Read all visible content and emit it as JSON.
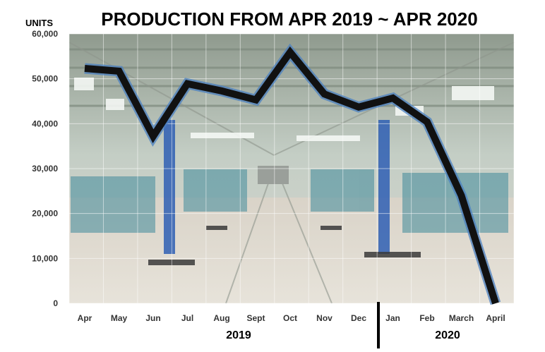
{
  "chart_data": {
    "type": "line",
    "title": "PRODUCTION FROM APR 2019 ~ APR 2020",
    "ylabel": "UNITS",
    "xlabel": "",
    "categories": [
      "Apr",
      "May",
      "Jun",
      "Jul",
      "Aug",
      "Sept",
      "Oct",
      "Nov",
      "Dec",
      "Jan",
      "Feb",
      "March",
      "April"
    ],
    "series": [
      {
        "values": [
          52300,
          51700,
          37200,
          48900,
          47300,
          45300,
          55900,
          46600,
          43700,
          45700,
          40400,
          24000,
          0
        ]
      }
    ],
    "ylim": [
      0,
      60000
    ],
    "yticks": [
      "0",
      "10,000",
      "20,000",
      "30,000",
      "40,000",
      "50,000",
      "60,000"
    ],
    "year_labels": [
      "2019",
      "2020"
    ],
    "grid": true,
    "colors": {
      "line": "#111111",
      "line_glow": "#4a7fc0",
      "background_photo": "#b9c6c0"
    }
  }
}
